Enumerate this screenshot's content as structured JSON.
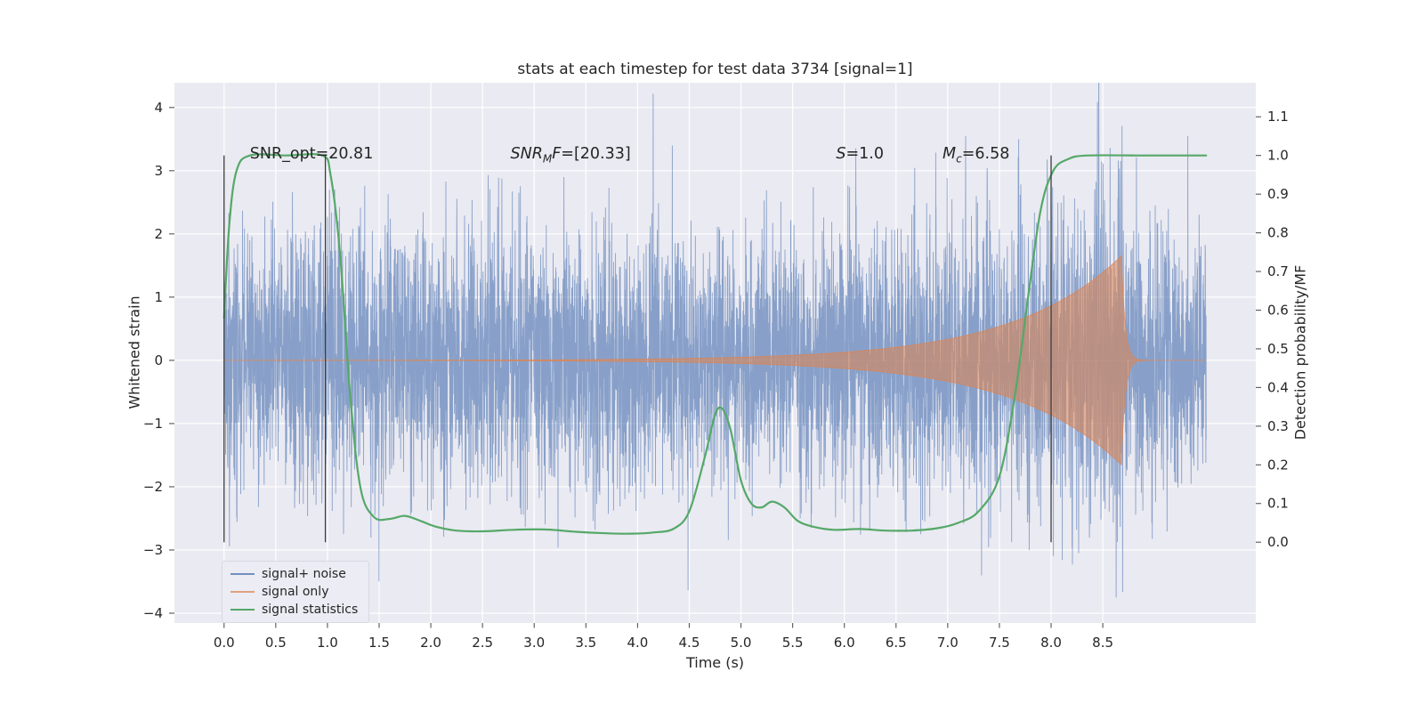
{
  "chart_data": {
    "type": "line",
    "title": "stats at each timestep for test data 3734 [signal=1]",
    "xlabel": "Time (s)",
    "ylabel_left": "Whitened strain",
    "ylabel_right": "Detection probability/MF",
    "xlim": [
      -0.48,
      9.98
    ],
    "ylim_left": [
      -4.155,
      4.391
    ],
    "ylim_right": [
      -0.209,
      1.188
    ],
    "grid": true,
    "background": "#eaeaf2",
    "grid_color": "#ffffff",
    "text_color": "#262626",
    "tick_color": "#555555",
    "x_ticks": {
      "values": [
        0,
        0.5,
        1,
        1.5,
        2,
        2.5,
        3,
        3.5,
        4,
        4.5,
        5,
        5.5,
        6,
        6.5,
        7,
        7.5,
        8,
        8.5
      ],
      "labels": [
        "0.0",
        "0.5",
        "1.0",
        "1.5",
        "2.0",
        "2.5",
        "3.0",
        "3.5",
        "4.0",
        "4.5",
        "5.0",
        "5.5",
        "6.0",
        "6.5",
        "7.0",
        "7.5",
        "8.0",
        "8.5"
      ]
    },
    "y_ticks_left": {
      "values": [
        -4,
        -3,
        -2,
        -1,
        0,
        1,
        2,
        3,
        4
      ],
      "labels": [
        "−4",
        "−3",
        "−2",
        "−1",
        "0",
        "1",
        "2",
        "3",
        "4"
      ]
    },
    "y_ticks_right": {
      "values": [
        0,
        0.1,
        0.2,
        0.3,
        0.4,
        0.5,
        0.6,
        0.7,
        0.8,
        0.9,
        1.0,
        1.1
      ],
      "labels": [
        "0.0",
        "0.1",
        "0.2",
        "0.3",
        "0.4",
        "0.5",
        "0.6",
        "0.7",
        "0.8",
        "0.9",
        "1.0",
        "1.1"
      ]
    },
    "vlines": {
      "x": [
        0.0,
        0.98,
        8.0
      ],
      "y_axis": "right",
      "y_from": 0.0,
      "y_to": 1.0,
      "color": "#3d3d3d"
    },
    "key_values": {
      "SNR_opt": 20.81,
      "SNR_MF": [
        20.33
      ],
      "S": 1.0,
      "M_c": 6.58
    },
    "annotations": [
      {
        "x": 0.25,
        "y": 3.25,
        "segments": [
          {
            "text": "SNR_opt=20.81"
          }
        ]
      },
      {
        "x": 2.77,
        "y": 3.25,
        "segments": [
          {
            "text": "SNR",
            "italic": true
          },
          {
            "text": "M",
            "italic": true,
            "sub": true
          },
          {
            "text": "F",
            "italic": true
          },
          {
            "text": "=[20.33]"
          }
        ]
      },
      {
        "x": 5.92,
        "y": 3.25,
        "segments": [
          {
            "text": "S",
            "italic": true
          },
          {
            "text": "=1.0"
          }
        ]
      },
      {
        "x": 6.95,
        "y": 3.25,
        "segments": [
          {
            "text": "M",
            "italic": true
          },
          {
            "text": "c",
            "italic": true,
            "sub": true
          },
          {
            "text": "=6.58"
          }
        ]
      }
    ],
    "series": [
      {
        "name": "signal+ noise",
        "color": "#4C72B0",
        "alpha": 0.62,
        "axis": "left",
        "kind": "noise_plus_signal",
        "t_start": 0,
        "t_end": 9.5,
        "n_points": 6000,
        "noise_std": 1.0,
        "seed": 3734
      },
      {
        "name": "signal only",
        "color": "#DD8452",
        "alpha": 0.58,
        "axis": "left",
        "kind": "chirp_envelope",
        "t_start": 0,
        "t_end": 9.5,
        "t_merge": 8.68,
        "amp_peak": 1.65,
        "growth_tau": 1.05,
        "ringdown_tau": 0.035,
        "f0": 10,
        "f1": 70,
        "f_tau": 1.8
      },
      {
        "name": "signal statistics",
        "color": "#55A868",
        "axis": "right",
        "kind": "smooth_curve",
        "points": [
          [
            0.0,
            0.58
          ],
          [
            0.05,
            0.82
          ],
          [
            0.12,
            0.96
          ],
          [
            0.25,
            1.0
          ],
          [
            0.6,
            1.0
          ],
          [
            0.95,
            1.0
          ],
          [
            1.03,
            0.95
          ],
          [
            1.12,
            0.75
          ],
          [
            1.22,
            0.38
          ],
          [
            1.32,
            0.14
          ],
          [
            1.45,
            0.065
          ],
          [
            1.6,
            0.06
          ],
          [
            1.75,
            0.068
          ],
          [
            1.9,
            0.055
          ],
          [
            2.05,
            0.04
          ],
          [
            2.25,
            0.03
          ],
          [
            2.5,
            0.028
          ],
          [
            2.8,
            0.032
          ],
          [
            3.1,
            0.033
          ],
          [
            3.4,
            0.027
          ],
          [
            3.7,
            0.023
          ],
          [
            3.95,
            0.022
          ],
          [
            4.15,
            0.025
          ],
          [
            4.35,
            0.035
          ],
          [
            4.5,
            0.08
          ],
          [
            4.65,
            0.22
          ],
          [
            4.75,
            0.33
          ],
          [
            4.82,
            0.345
          ],
          [
            4.9,
            0.29
          ],
          [
            5.0,
            0.16
          ],
          [
            5.1,
            0.1
          ],
          [
            5.2,
            0.09
          ],
          [
            5.3,
            0.105
          ],
          [
            5.42,
            0.09
          ],
          [
            5.55,
            0.055
          ],
          [
            5.7,
            0.04
          ],
          [
            5.9,
            0.032
          ],
          [
            6.15,
            0.034
          ],
          [
            6.4,
            0.03
          ],
          [
            6.65,
            0.03
          ],
          [
            6.9,
            0.036
          ],
          [
            7.1,
            0.05
          ],
          [
            7.3,
            0.08
          ],
          [
            7.5,
            0.17
          ],
          [
            7.65,
            0.38
          ],
          [
            7.78,
            0.64
          ],
          [
            7.9,
            0.86
          ],
          [
            8.02,
            0.96
          ],
          [
            8.16,
            0.99
          ],
          [
            8.35,
            1.0
          ],
          [
            8.9,
            1.0
          ],
          [
            9.5,
            1.0
          ]
        ]
      }
    ],
    "legend": {
      "location": "lower left",
      "entries": [
        "signal+ noise",
        "signal only",
        "signal statistics"
      ]
    }
  }
}
